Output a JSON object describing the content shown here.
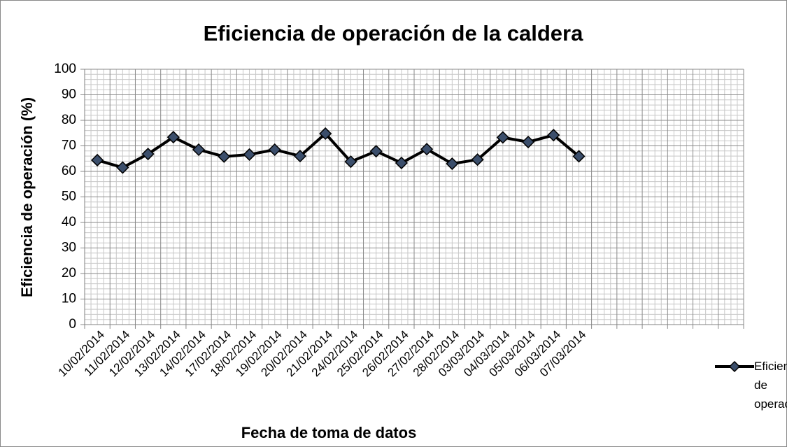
{
  "chart_data": {
    "type": "line",
    "title": "Eficiencia de operación de la caldera",
    "xlabel": "Fecha de toma de datos",
    "ylabel": "Eficiencia de operación (%)",
    "categories": [
      "10/02/2014",
      "11/02/2014",
      "12/02/2014",
      "13/02/2014",
      "14/02/2014",
      "17/02/2014",
      "18/02/2014",
      "19/02/2014",
      "20/02/2014",
      "21/02/2014",
      "24/02/2014",
      "25/02/2014",
      "26/02/2014",
      "27/02/2014",
      "28/02/2014",
      "03/03/2014",
      "04/03/2014",
      "05/03/2014",
      "06/03/2014",
      "07/03/2014",
      null,
      null,
      null,
      null,
      null,
      null
    ],
    "series": [
      {
        "name": "Eficiencia de operación",
        "color": "#000000",
        "marker_color": "#3b4e6b",
        "values": [
          64.4,
          61.5,
          66.8,
          73.4,
          68.5,
          65.8,
          66.6,
          68.5,
          66.0,
          74.8,
          63.8,
          67.9,
          63.3,
          68.7,
          63.0,
          64.6,
          73.3,
          71.5,
          74.2,
          65.9,
          null,
          null,
          null,
          null,
          null,
          null
        ]
      }
    ],
    "ylim": [
      0,
      100
    ],
    "yticks": [
      0,
      10,
      20,
      30,
      40,
      50,
      60,
      70,
      80,
      90,
      100
    ],
    "grid": true,
    "legend": "right"
  }
}
